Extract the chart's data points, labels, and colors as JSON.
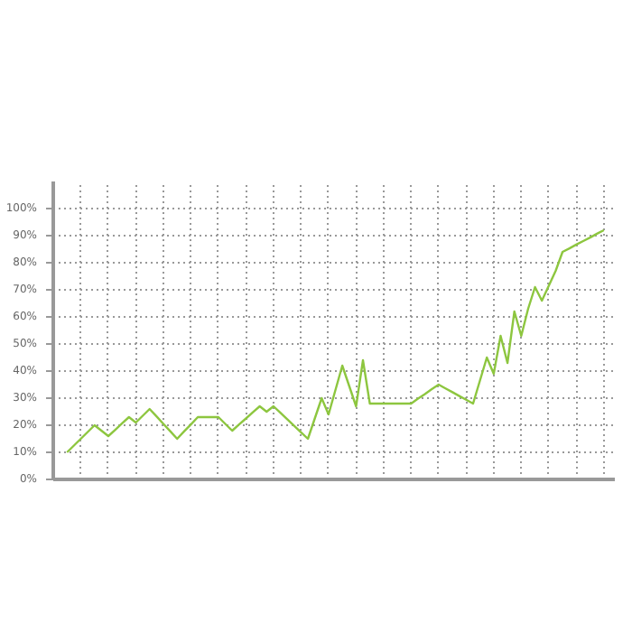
{
  "chart_data": {
    "type": "line",
    "categories": [
      null,
      null,
      null,
      null,
      null,
      null,
      null,
      null,
      null,
      null,
      null,
      null,
      null,
      null,
      null,
      null,
      null,
      null,
      null,
      null,
      null,
      null,
      null,
      null,
      null,
      null,
      null,
      null,
      null,
      null,
      null,
      null,
      null,
      null,
      null,
      null,
      null,
      null,
      null,
      null,
      null,
      null,
      null,
      null,
      null,
      null,
      null,
      null,
      null,
      null,
      null,
      null,
      null,
      null,
      null,
      null,
      null,
      null,
      null,
      null,
      null,
      null,
      null,
      null,
      null,
      null,
      null,
      null,
      null,
      null,
      null,
      null,
      null,
      null,
      null,
      null,
      null,
      null,
      null
    ],
    "series": [
      {
        "color": "#8dc63f",
        "values": [
          10,
          12.5,
          15,
          17.5,
          20,
          18,
          16,
          18.3,
          20.7,
          23,
          21,
          23.5,
          26,
          23.3,
          20.5,
          17.8,
          15,
          17.7,
          20.3,
          23,
          23,
          23,
          23,
          20.5,
          18,
          20.3,
          22.5,
          24.8,
          27,
          25,
          27,
          24.6,
          22.2,
          19.8,
          17.4,
          15,
          22.5,
          30,
          24,
          33,
          42,
          34.5,
          27,
          44,
          28,
          28,
          28,
          28,
          28,
          28,
          28,
          29.8,
          31.5,
          33.3,
          35,
          33.6,
          32.2,
          30.8,
          29.4,
          28,
          36.5,
          45,
          39,
          53,
          43,
          62,
          53,
          63,
          71,
          66,
          71.5,
          77,
          84,
          85.3,
          86.7,
          88,
          89.3,
          90.7,
          92
        ]
      }
    ],
    "ylim": [
      0,
      110
    ],
    "yticks": [
      {
        "value": 0,
        "label": "0%"
      },
      {
        "value": 10,
        "label": "10%"
      },
      {
        "value": 20,
        "label": "20%"
      },
      {
        "value": 30,
        "label": "30%"
      },
      {
        "value": 40,
        "label": "40%"
      },
      {
        "value": 50,
        "label": "50%"
      },
      {
        "value": 60,
        "label": "60%"
      },
      {
        "value": 70,
        "label": "70%"
      },
      {
        "value": 80,
        "label": "80%"
      },
      {
        "value": 90,
        "label": "90%"
      },
      {
        "value": 100,
        "label": "100%"
      }
    ],
    "grid": true,
    "tick_labels": "y",
    "marker": "none",
    "line_style": "solid"
  }
}
